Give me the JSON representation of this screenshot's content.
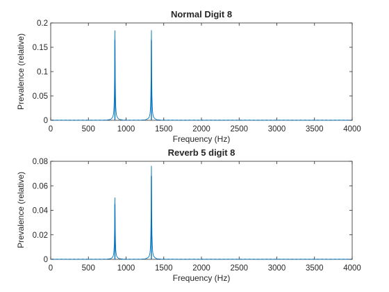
{
  "chart_data": [
    {
      "type": "line",
      "title": "Normal Digit 8",
      "xlabel": "Frequency (Hz)",
      "ylabel": "Prevalence (relative)",
      "xlim": [
        0,
        4000
      ],
      "ylim": [
        0,
        0.2
      ],
      "xticks": [
        "0",
        "500",
        "1000",
        "1500",
        "2000",
        "2500",
        "3000",
        "3500",
        "4000"
      ],
      "yticks": [
        "0",
        "0.05",
        "0.1",
        "0.15",
        "0.2"
      ],
      "grid": false,
      "color": "#0072BD",
      "peaks": [
        {
          "x": 852,
          "y": 0.165
        },
        {
          "x": 1336,
          "y": 0.165
        }
      ]
    },
    {
      "type": "line",
      "title": "Reverb 5 digit 8",
      "xlabel": "Frequency (Hz)",
      "ylabel": "Prevalence (relative)",
      "xlim": [
        0,
        4000
      ],
      "ylim": [
        0,
        0.08
      ],
      "xticks": [
        "0",
        "500",
        "1000",
        "1500",
        "2000",
        "2500",
        "3000",
        "3500",
        "4000"
      ],
      "yticks": [
        "0",
        "0.02",
        "0.04",
        "0.06",
        "0.08"
      ],
      "grid": false,
      "color": "#0072BD",
      "peaks": [
        {
          "x": 852,
          "y": 0.045
        },
        {
          "x": 1336,
          "y": 0.068
        }
      ]
    }
  ]
}
